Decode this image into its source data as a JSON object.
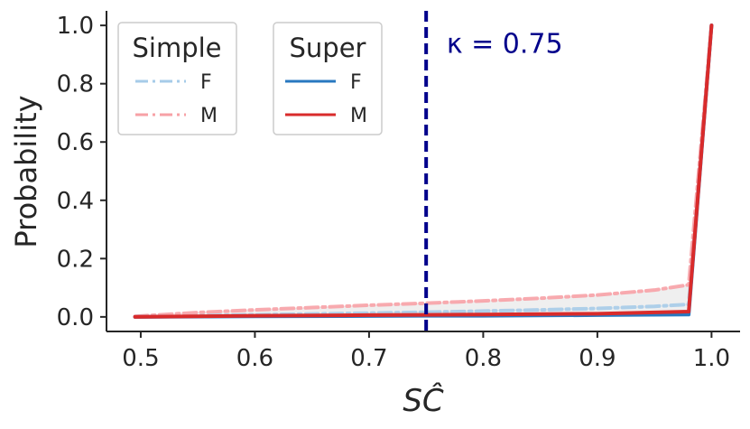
{
  "chart_data": {
    "type": "line",
    "xlabel": "$\\hat{SC}$",
    "xlabel_display": "SĈ",
    "ylabel": "Probability",
    "xlim": [
      0.47,
      1.025
    ],
    "ylim": [
      -0.05,
      1.05
    ],
    "xticks": [
      0.5,
      0.6,
      0.7,
      0.8,
      0.9,
      1.0
    ],
    "xtick_labels": [
      "0.5",
      "0.6",
      "0.7",
      "0.8",
      "0.9",
      "1.0"
    ],
    "yticks": [
      0.0,
      0.2,
      0.4,
      0.6,
      0.8,
      1.0
    ],
    "ytick_labels": [
      "0.0",
      "0.2",
      "0.4",
      "0.6",
      "0.8",
      "1.0"
    ],
    "grid": false,
    "vline": {
      "x": 0.75,
      "color": "#00008b",
      "style": "dashed"
    },
    "annotation": {
      "text": "κ = 0.75",
      "x": 0.768,
      "y": 0.94,
      "color": "#00008b"
    },
    "legends": [
      {
        "title": "Simple",
        "placement": "top-left",
        "entries": [
          {
            "label": "F",
            "color": "#a6cbe8",
            "style": "dashdot"
          },
          {
            "label": "M",
            "color": "#f7a1a6",
            "style": "dashdot"
          }
        ]
      },
      {
        "title": "Super",
        "placement": "top-left",
        "entries": [
          {
            "label": "F",
            "color": "#2878c0",
            "style": "solid"
          },
          {
            "label": "M",
            "color": "#d92b2b",
            "style": "solid"
          }
        ]
      }
    ],
    "series": [
      {
        "group": "Simple",
        "legend_label": "F",
        "color": "#a6cbe8",
        "style": "dashdot",
        "opacity": 0.9,
        "x": [
          0.495,
          0.55,
          0.6,
          0.65,
          0.7,
          0.75,
          0.8,
          0.85,
          0.9,
          0.95,
          0.98,
          1.0
        ],
        "y": [
          0.0,
          0.004,
          0.007,
          0.01,
          0.013,
          0.016,
          0.02,
          0.024,
          0.029,
          0.036,
          0.043,
          1.0
        ]
      },
      {
        "group": "Simple",
        "legend_label": "M",
        "color": "#f7a1a6",
        "style": "dashdot",
        "opacity": 0.9,
        "x": [
          0.495,
          0.55,
          0.6,
          0.65,
          0.7,
          0.75,
          0.8,
          0.85,
          0.9,
          0.95,
          0.98,
          1.0
        ],
        "y": [
          0.002,
          0.015,
          0.024,
          0.032,
          0.04,
          0.047,
          0.055,
          0.064,
          0.075,
          0.092,
          0.11,
          1.0
        ]
      },
      {
        "group": "Super",
        "legend_label": "F",
        "color": "#2878c0",
        "style": "solid",
        "opacity": 1,
        "x": [
          0.495,
          0.6,
          0.7,
          0.75,
          0.8,
          0.9,
          0.98,
          1.0
        ],
        "y": [
          0.0,
          0.002,
          0.003,
          0.004,
          0.004,
          0.006,
          0.008,
          1.0
        ]
      },
      {
        "group": "Super",
        "legend_label": "M",
        "color": "#d92b2b",
        "style": "solid",
        "opacity": 1,
        "x": [
          0.495,
          0.6,
          0.7,
          0.75,
          0.8,
          0.9,
          0.98,
          1.0
        ],
        "y": [
          0.0,
          0.004,
          0.006,
          0.007,
          0.008,
          0.011,
          0.018,
          1.0
        ]
      }
    ],
    "shaded_band": {
      "color": "#e8e8e8",
      "x": [
        0.495,
        0.55,
        0.6,
        0.65,
        0.7,
        0.75,
        0.8,
        0.85,
        0.9,
        0.95,
        0.98,
        0.98
      ],
      "upper": [
        0.002,
        0.015,
        0.024,
        0.032,
        0.04,
        0.047,
        0.055,
        0.064,
        0.075,
        0.092,
        0.11,
        0.11
      ],
      "lower": [
        0.0,
        0.001,
        0.002,
        0.002,
        0.003,
        0.003,
        0.004,
        0.005,
        0.006,
        0.007,
        0.008,
        0.008
      ]
    }
  }
}
